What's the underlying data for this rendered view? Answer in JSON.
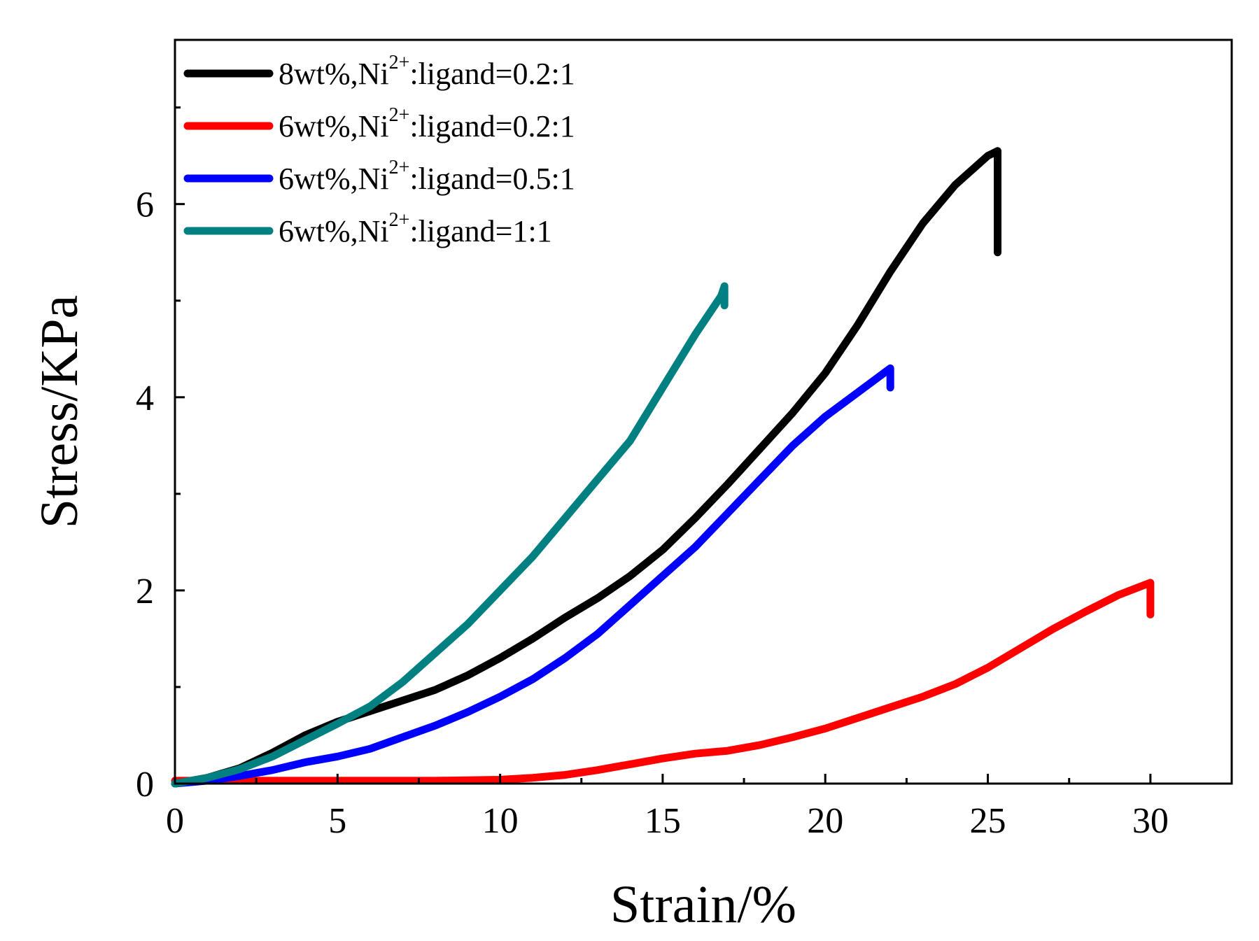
{
  "chart_data": {
    "type": "line",
    "title": "",
    "xlabel": "Strain/%",
    "ylabel": "Stress/KPa",
    "xlim": [
      0,
      32.5
    ],
    "ylim": [
      0,
      7.7
    ],
    "xticks": [
      0,
      5,
      10,
      15,
      20,
      25,
      30
    ],
    "xtick_labels": [
      "0",
      "5",
      "10",
      "15",
      "20",
      "25",
      "30"
    ],
    "yticks": [
      0,
      2,
      4,
      6
    ],
    "ytick_labels": [
      "0",
      "2",
      "4",
      "6"
    ],
    "grid": false,
    "legend_position": "top-left",
    "series": [
      {
        "name": "8wt%,Ni2+:ligand=0.2:1",
        "legend_pre": "8wt%,Ni",
        "legend_sup": "2+",
        "legend_post": ":ligand=0.2:1",
        "color": "#000000",
        "x": [
          0,
          1,
          2,
          3,
          4,
          5,
          6,
          7,
          8,
          9,
          10,
          11,
          12,
          13,
          14,
          15,
          16,
          17,
          18,
          19,
          20,
          21,
          22,
          23,
          24,
          25,
          25.3,
          25.3
        ],
        "y": [
          0,
          0.06,
          0.16,
          0.32,
          0.5,
          0.64,
          0.75,
          0.86,
          0.97,
          1.12,
          1.3,
          1.5,
          1.72,
          1.92,
          2.15,
          2.42,
          2.75,
          3.1,
          3.47,
          3.84,
          4.25,
          4.75,
          5.3,
          5.8,
          6.2,
          6.5,
          6.55,
          5.5
        ]
      },
      {
        "name": "6wt%,Ni2+:ligand=0.2:1",
        "legend_pre": "6wt%,Ni",
        "legend_sup": "2+",
        "legend_post": ":ligand=0.2:1",
        "color": "#ff0000",
        "x": [
          0,
          2,
          4,
          6,
          8,
          10,
          11,
          12,
          13,
          14,
          15,
          16,
          17,
          18,
          19,
          20,
          21,
          22,
          23,
          24,
          25,
          26,
          27,
          28,
          29,
          30,
          30
        ],
        "y": [
          0.03,
          0.03,
          0.03,
          0.03,
          0.03,
          0.04,
          0.06,
          0.09,
          0.14,
          0.2,
          0.26,
          0.31,
          0.34,
          0.4,
          0.48,
          0.57,
          0.68,
          0.79,
          0.9,
          1.03,
          1.2,
          1.4,
          1.6,
          1.78,
          1.95,
          2.08,
          1.75
        ]
      },
      {
        "name": "6wt%,Ni2+:ligand=0.5:1",
        "legend_pre": "6wt%,Ni",
        "legend_sup": "2+",
        "legend_post": ":ligand=0.5:1",
        "color": "#0000ff",
        "x": [
          0,
          1,
          2,
          3,
          4,
          5,
          6,
          7,
          8,
          9,
          10,
          11,
          12,
          13,
          14,
          15,
          16,
          17,
          18,
          19,
          20,
          21,
          21.8,
          22,
          22
        ],
        "y": [
          0,
          0.03,
          0.08,
          0.14,
          0.22,
          0.28,
          0.36,
          0.48,
          0.6,
          0.74,
          0.9,
          1.08,
          1.3,
          1.55,
          1.85,
          2.15,
          2.45,
          2.8,
          3.15,
          3.5,
          3.8,
          4.05,
          4.25,
          4.3,
          4.1
        ]
      },
      {
        "name": "6wt%,Ni2+:ligand=1:1",
        "legend_pre": "6wt%,Ni",
        "legend_sup": "2+",
        "legend_post": ":ligand=1:1",
        "color": "#008080",
        "x": [
          0,
          1,
          2,
          3,
          4,
          5,
          6,
          7,
          8,
          9,
          10,
          11,
          12,
          13,
          14,
          15,
          16,
          16.8,
          16.9,
          16.9
        ],
        "y": [
          0,
          0.06,
          0.15,
          0.28,
          0.45,
          0.62,
          0.8,
          1.05,
          1.35,
          1.65,
          2.0,
          2.35,
          2.75,
          3.15,
          3.55,
          4.1,
          4.65,
          5.05,
          5.15,
          4.95
        ]
      }
    ]
  }
}
